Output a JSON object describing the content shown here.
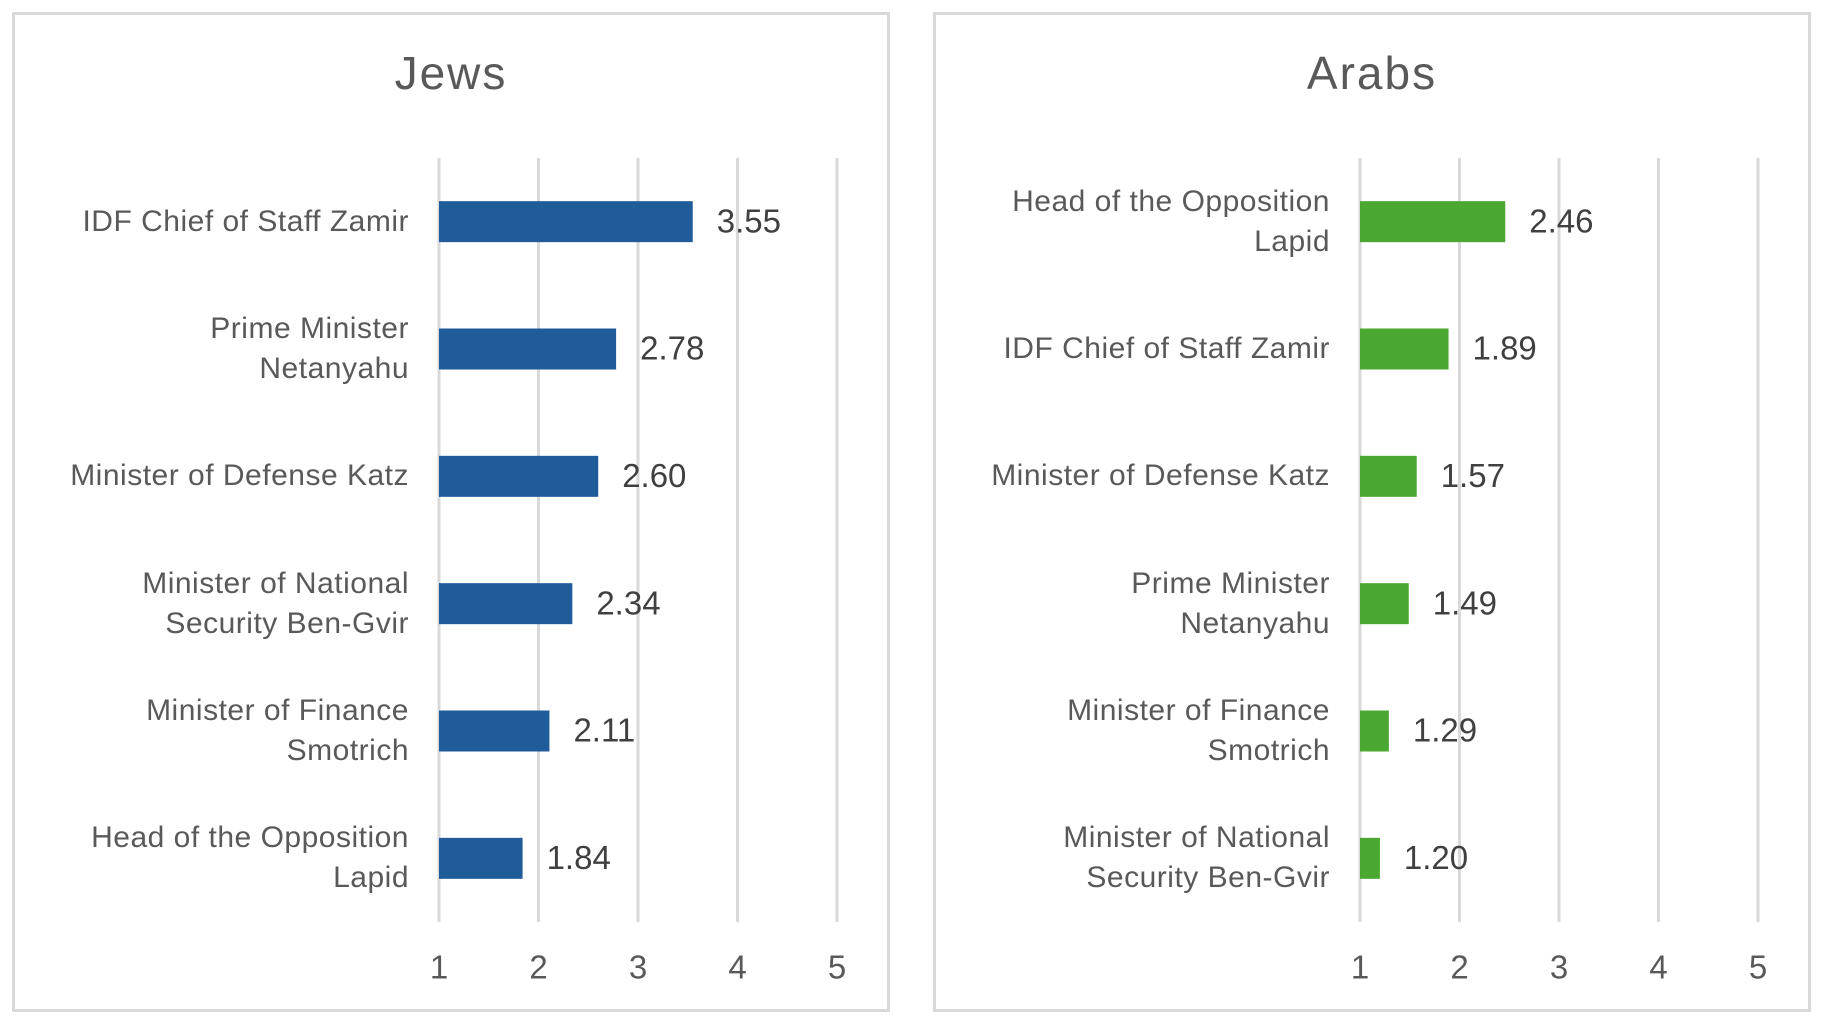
{
  "chart_data": [
    {
      "type": "barh",
      "title": "Jews",
      "categories": [
        "IDF Chief of Staff Zamir",
        "Prime Minister\nNetanyahu",
        "Minister of Defense Katz",
        "Minister of National\nSecurity Ben-Gvir",
        "Minister of Finance\nSmotrich",
        "Head of the Opposition\nLapid"
      ],
      "values": [
        3.55,
        2.78,
        2.6,
        2.34,
        2.11,
        1.84
      ],
      "value_labels": [
        "3.55",
        "2.78",
        "2.60",
        "2.34",
        "2.11",
        "1.84"
      ],
      "color": "#1f5c99",
      "xlim": [
        1,
        5
      ],
      "xticks": [
        1,
        2,
        3,
        4,
        5
      ],
      "grid": true
    },
    {
      "type": "barh",
      "title": "Arabs",
      "categories": [
        "Head of the Opposition\nLapid",
        "IDF Chief of Staff Zamir",
        "Minister of Defense Katz",
        "Prime Minister\nNetanyahu",
        "Minister of Finance\nSmotrich",
        "Minister of National\nSecurity Ben-Gvir"
      ],
      "values": [
        2.46,
        1.89,
        1.57,
        1.49,
        1.29,
        1.2
      ],
      "value_labels": [
        "2.46",
        "1.89",
        "1.57",
        "1.49",
        "1.29",
        "1.20"
      ],
      "color": "#4aa832",
      "xlim": [
        1,
        5
      ],
      "xticks": [
        1,
        2,
        3,
        4,
        5
      ],
      "grid": true
    }
  ]
}
